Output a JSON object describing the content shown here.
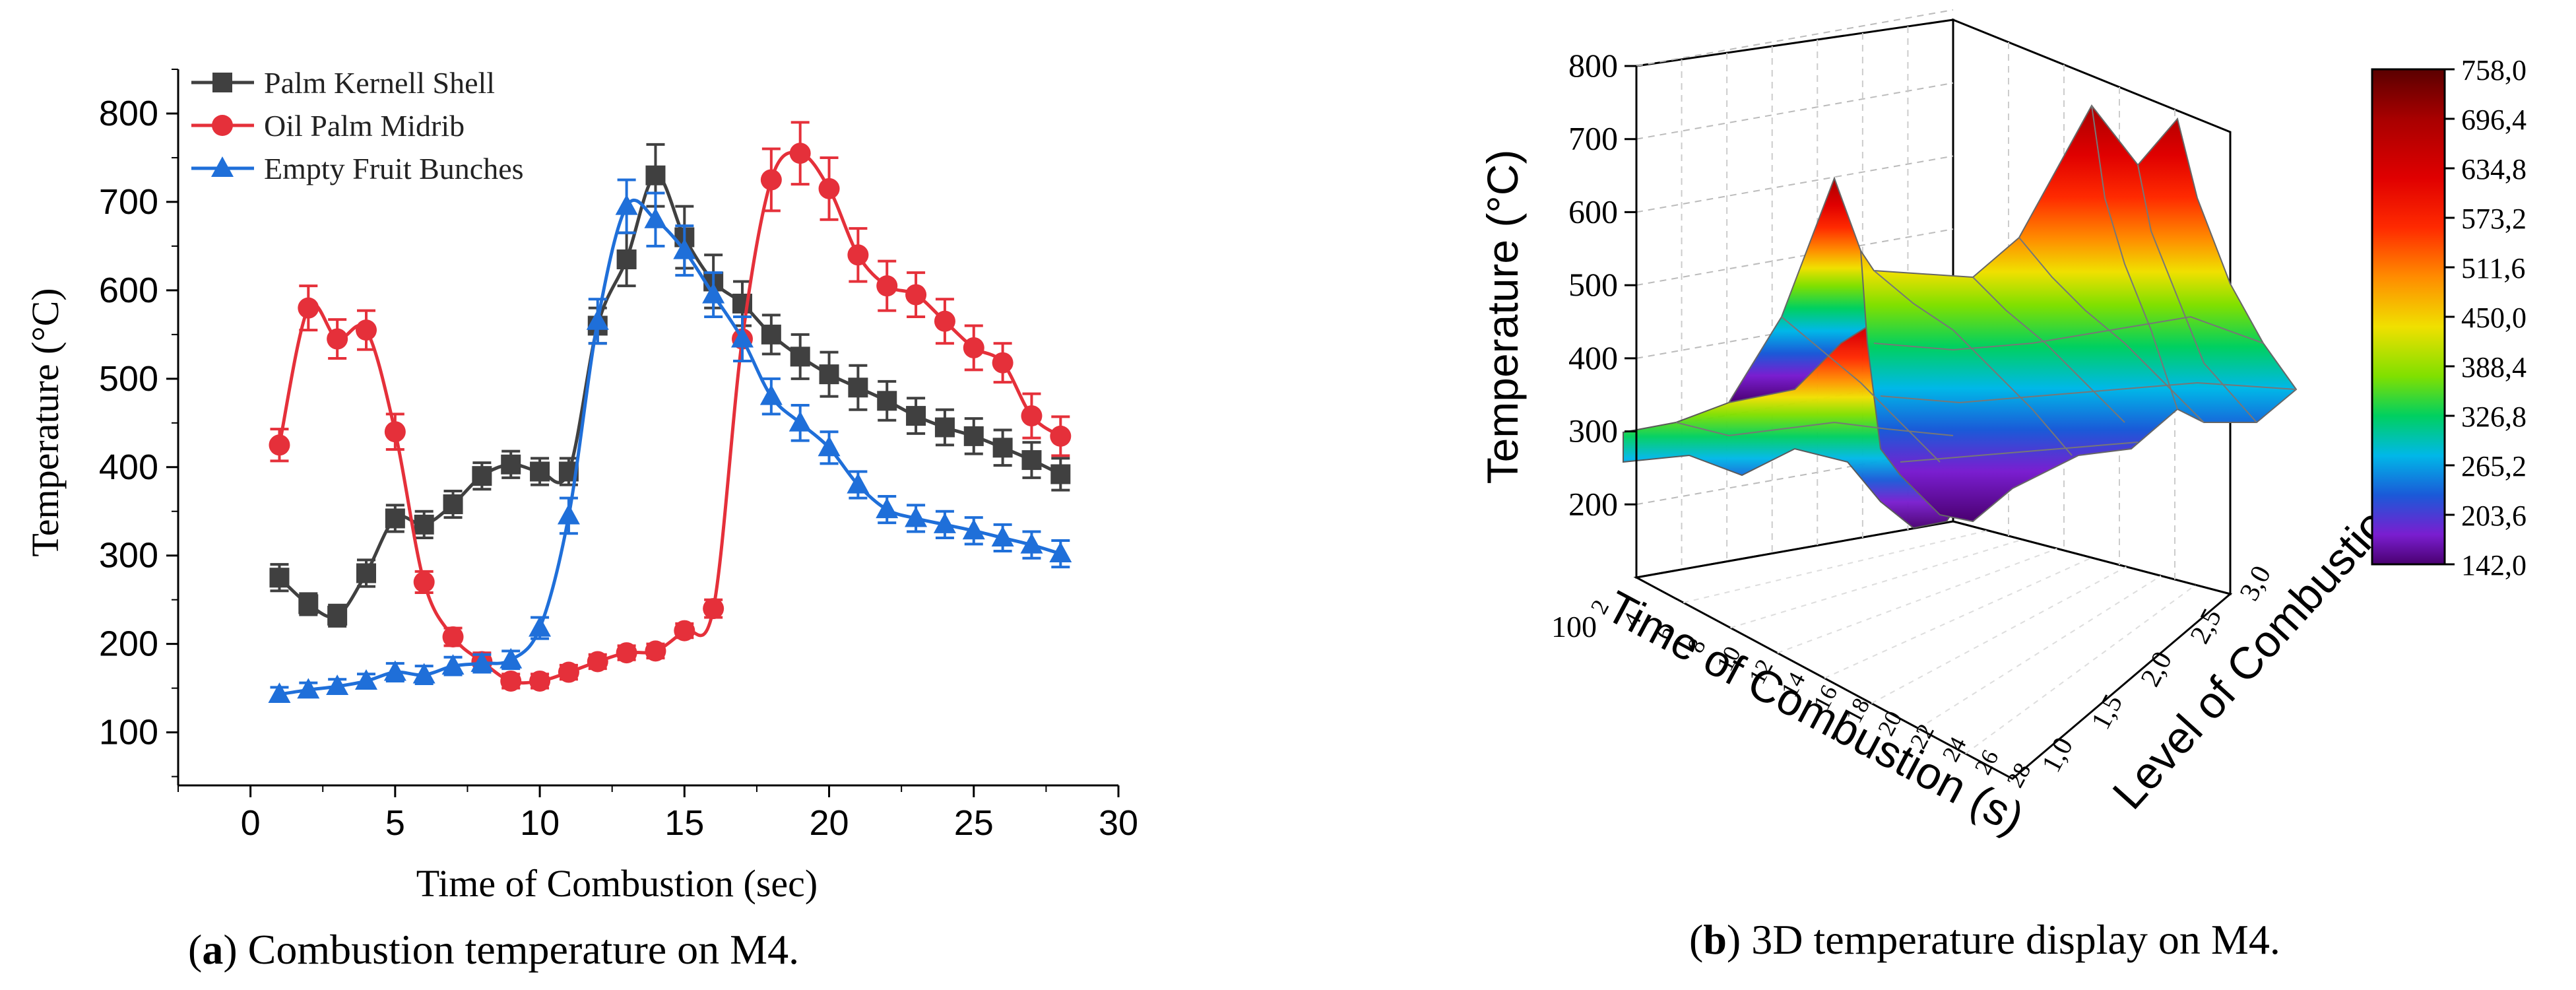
{
  "chart_data": [
    {
      "type": "line",
      "title": "",
      "xlabel": "Time of Combustion (sec)",
      "ylabel": "Temperature (°C)",
      "xlim": [
        -2.5,
        30
      ],
      "ylim": [
        40,
        850
      ],
      "xticks": [
        0,
        5,
        10,
        15,
        20,
        25,
        30
      ],
      "yticks": [
        100,
        200,
        300,
        400,
        500,
        600,
        700,
        800
      ],
      "legend_position": "top-left",
      "caption": {
        "label": "a",
        "text": "Combustion temperature on M4."
      },
      "x": [
        1,
        2,
        3,
        4,
        5,
        6,
        7,
        8,
        9,
        10,
        11,
        12,
        13,
        14,
        15,
        16,
        17,
        18,
        19,
        20,
        21,
        22,
        23,
        24,
        25,
        26,
        27,
        28
      ],
      "series": [
        {
          "name": "Palm Kernell Shell",
          "color": "#404040",
          "marker": "square",
          "values": [
            275,
            245,
            232,
            280,
            342,
            335,
            358,
            390,
            403,
            395,
            395,
            560,
            635,
            730,
            660,
            610,
            585,
            550,
            525,
            505,
            490,
            475,
            458,
            445,
            435,
            422,
            408,
            392
          ],
          "errors": [
            15,
            12,
            12,
            15,
            15,
            15,
            15,
            15,
            15,
            15,
            15,
            20,
            30,
            35,
            35,
            30,
            25,
            22,
            25,
            25,
            25,
            22,
            20,
            20,
            20,
            20,
            20,
            18
          ]
        },
        {
          "name": "Oil Palm Midrib",
          "color": "#e5303a",
          "marker": "circle",
          "values": [
            425,
            580,
            545,
            555,
            440,
            270,
            208,
            180,
            158,
            158,
            168,
            180,
            190,
            192,
            215,
            240,
            545,
            725,
            755,
            715,
            640,
            605,
            595,
            565,
            535,
            518,
            458,
            435
          ],
          "errors": [
            18,
            25,
            22,
            22,
            20,
            12,
            10,
            10,
            8,
            8,
            8,
            8,
            8,
            8,
            8,
            10,
            25,
            35,
            35,
            35,
            30,
            28,
            25,
            25,
            25,
            22,
            25,
            22
          ]
        },
        {
          "name": "Empty Fruit Bunches",
          "color": "#1f6fd9",
          "marker": "triangle",
          "values": [
            143,
            148,
            152,
            158,
            168,
            165,
            175,
            178,
            182,
            218,
            345,
            565,
            695,
            680,
            645,
            595,
            545,
            480,
            450,
            422,
            380,
            352,
            342,
            335,
            328,
            320,
            312,
            302
          ],
          "errors": [
            8,
            8,
            8,
            8,
            10,
            10,
            10,
            10,
            10,
            12,
            20,
            25,
            30,
            30,
            28,
            25,
            25,
            20,
            20,
            18,
            15,
            15,
            15,
            15,
            15,
            15,
            15,
            15
          ]
        }
      ]
    },
    {
      "type": "surface3d",
      "title": "",
      "xlabel": "Time of Combustion (s)",
      "ylabel": "Level of Combustion",
      "zlabel": "Temperature (°C)",
      "zticks": [
        200,
        300,
        400,
        500,
        600,
        700,
        800
      ],
      "zlim": [
        100,
        800
      ],
      "yticks": [
        "1,0",
        "1,5",
        "2,0",
        "2,5",
        "3,0"
      ],
      "xticks": [
        "2",
        "4",
        "6",
        "8",
        "10",
        "12",
        "14",
        "16",
        "18",
        "20",
        "22",
        "24",
        "26",
        "28"
      ],
      "z_floor_label": "100",
      "colorbar": {
        "labels": [
          "758,0",
          "696,4",
          "634,8",
          "573,2",
          "511,6",
          "450,0",
          "388,4",
          "326,8",
          "265,2",
          "203,6",
          "142,0"
        ],
        "colors": [
          "#6b0000",
          "#a80000",
          "#e00000",
          "#ff2a00",
          "#ff8c00",
          "#f0e000",
          "#80e000",
          "#00d060",
          "#00b8e8",
          "#1a5ad8",
          "#7a1ed0",
          "#4a0070"
        ]
      },
      "surface": {
        "level_1": [
          290,
          280,
          260,
          270,
          300,
          320,
          500,
          520,
          560,
          610,
          630,
          650,
          600,
          480
        ],
        "level_2": [
          330,
          320,
          290,
          300,
          330,
          360,
          520,
          560,
          620,
          660,
          700,
          720,
          650,
          500
        ],
        "level_3": [
          340,
          330,
          300,
          280,
          250,
          230,
          540,
          600,
          640,
          690,
          740,
          758,
          640,
          420
        ]
      },
      "caption": {
        "label": "b",
        "text": "3D temperature display on M4."
      }
    }
  ]
}
